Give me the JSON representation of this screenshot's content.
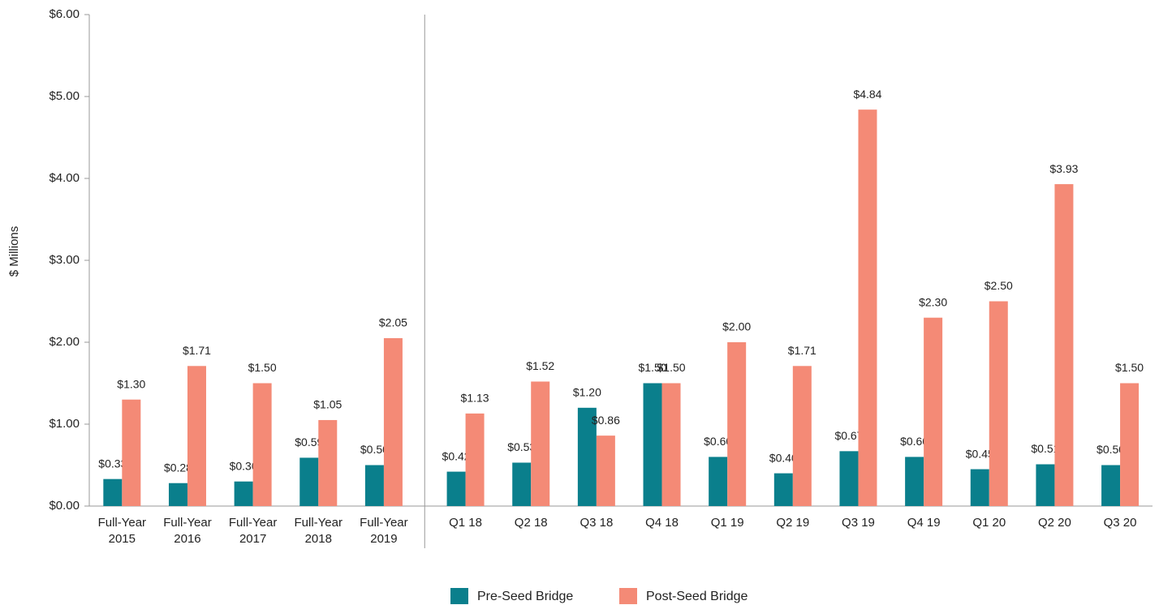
{
  "chart_data": {
    "type": "bar",
    "y_label": "$ Millions",
    "categories": [
      "Full-Year 2015",
      "Full-Year 2016",
      "Full-Year 2017",
      "Full-Year 2018",
      "Full-Year 2019",
      "Q1 18",
      "Q2 18",
      "Q3 18",
      "Q4 18",
      "Q1 19",
      "Q2 19",
      "Q3 19",
      "Q4 19",
      "Q1 20",
      "Q2 20",
      "Q3 20"
    ],
    "series": [
      {
        "name": "Pre-Seed Bridge",
        "color": "#0a7f8c",
        "values": [
          0.33,
          0.28,
          0.3,
          0.59,
          0.5,
          0.42,
          0.53,
          1.2,
          1.5,
          0.6,
          0.4,
          0.67,
          0.6,
          0.45,
          0.51,
          0.5
        ],
        "value_labels": [
          "$0.33",
          "$0.28",
          "$0.30",
          "$0.59",
          "$0.50",
          "$0.42",
          "$0.53",
          "$1.20",
          "$1.50",
          "$0.60",
          "$0.40",
          "$0.67",
          "$0.60",
          "$0.45",
          "$0.51",
          "$0.50"
        ]
      },
      {
        "name": "Post-Seed Bridge",
        "color": "#f48a76",
        "values": [
          1.3,
          1.71,
          1.5,
          1.05,
          2.05,
          1.13,
          1.52,
          0.86,
          1.5,
          2.0,
          1.71,
          4.84,
          2.3,
          2.5,
          3.93,
          1.5
        ],
        "value_labels": [
          "$1.30",
          "$1.71",
          "$1.50",
          "$1.05",
          "$2.05",
          "$1.13",
          "$1.52",
          "$0.86",
          "$1.50",
          "$2.00",
          "$1.71",
          "$4.84",
          "$2.30",
          "$2.50",
          "$3.93",
          "$1.50"
        ]
      }
    ],
    "ylim": [
      0,
      6
    ],
    "yticks": [
      {
        "value": 0,
        "label": "$0.00"
      },
      {
        "value": 1,
        "label": "$1.00"
      },
      {
        "value": 2,
        "label": "$2.00"
      },
      {
        "value": 3,
        "label": "$3.00"
      },
      {
        "value": 4,
        "label": "$4.00"
      },
      {
        "value": 5,
        "label": "$5.00"
      },
      {
        "value": 6,
        "label": "$6.00"
      }
    ],
    "legend": "bottom"
  }
}
